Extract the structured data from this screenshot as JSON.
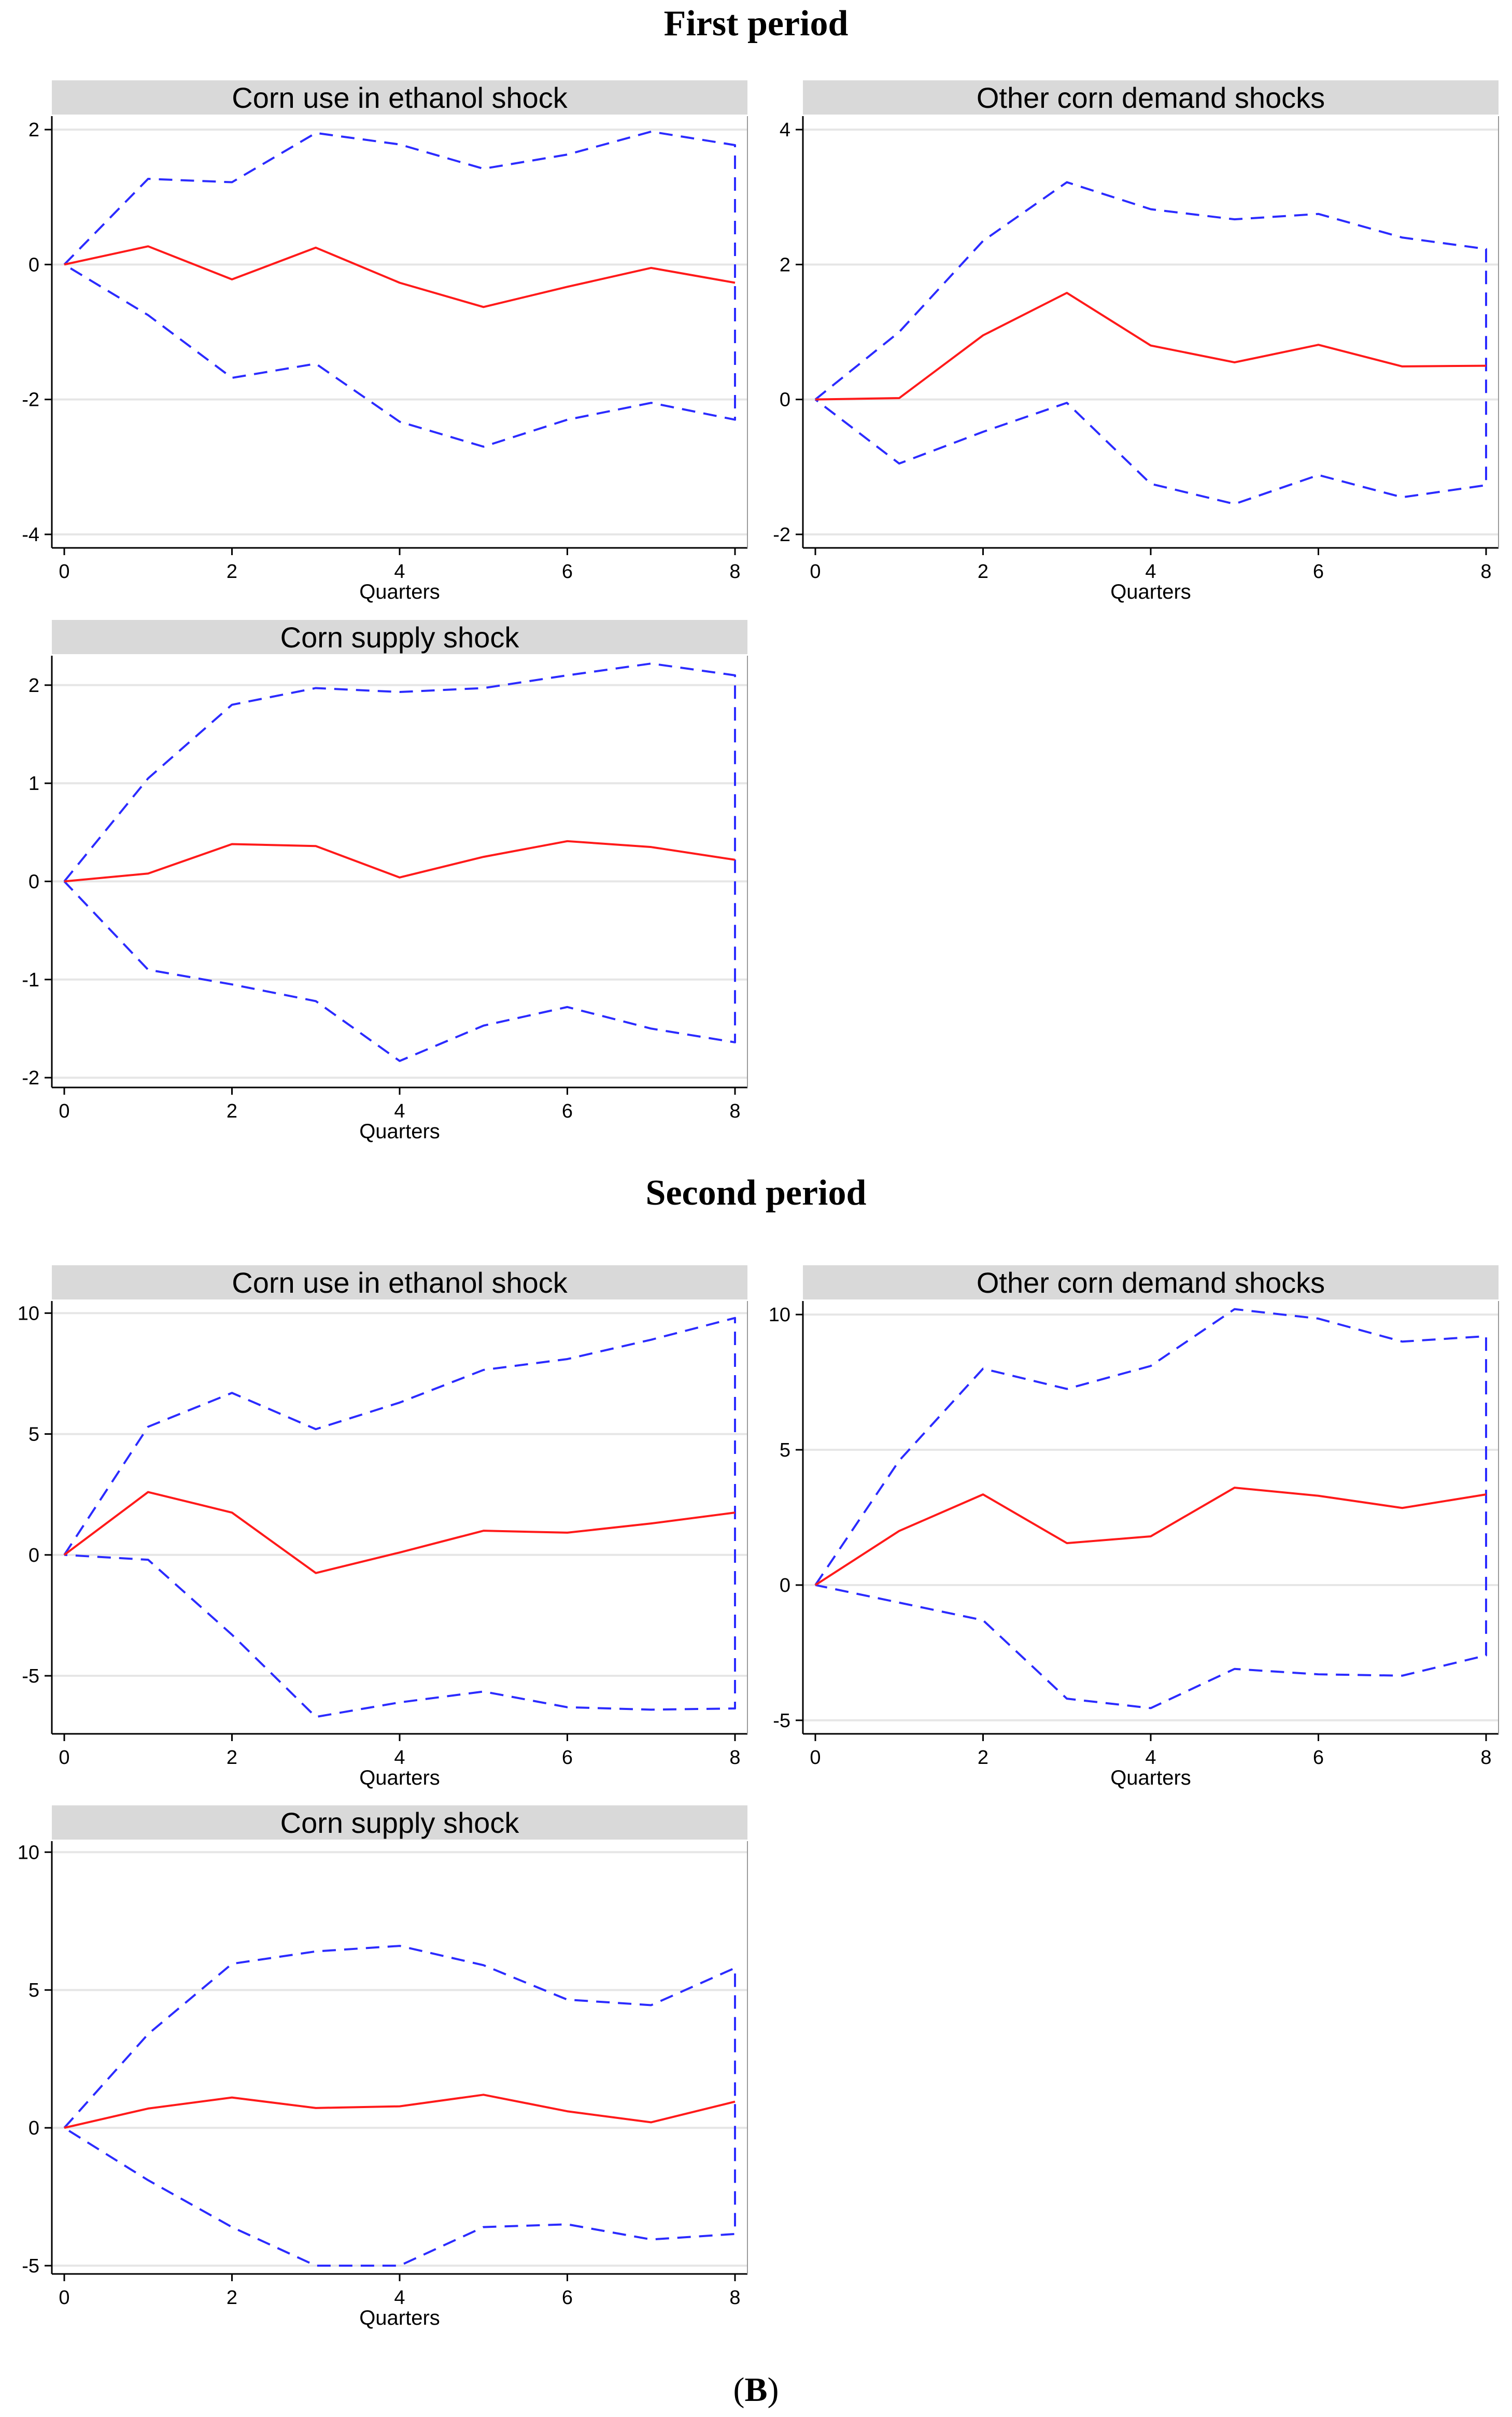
{
  "periods": [
    {
      "title": "First period"
    },
    {
      "title": "Second period"
    }
  ],
  "figure_label": "B",
  "figure_label_open": "(",
  "figure_label_close": ")",
  "colors": {
    "irf": "#ff1a1a",
    "bands": "#2b2bff",
    "title_bar": "#d9d9d9",
    "grid": "#e6e6e6",
    "axis": "#000000"
  },
  "chart_data": [
    {
      "period": "First period",
      "type": "line",
      "title": "Corn use in ethanol shock",
      "xlabel": "Quarters",
      "x": [
        0,
        1,
        2,
        3,
        4,
        5,
        6,
        7,
        8
      ],
      "xticks": [
        0,
        2,
        4,
        6,
        8
      ],
      "yticks": [
        -4,
        -2,
        0,
        2
      ],
      "ylim": [
        -4.2,
        2.2
      ],
      "grid": true,
      "series": [
        {
          "name": "irf",
          "style": "solid",
          "values": [
            0,
            0.27,
            -0.22,
            0.25,
            -0.27,
            -0.63,
            -0.33,
            -0.05,
            -0.27
          ]
        },
        {
          "name": "upper",
          "style": "dashed",
          "values": [
            0,
            1.27,
            1.22,
            1.95,
            1.78,
            1.42,
            1.63,
            1.97,
            1.77
          ]
        },
        {
          "name": "lower",
          "style": "dashed",
          "values": [
            0,
            -0.75,
            -1.68,
            -1.47,
            -2.33,
            -2.7,
            -2.3,
            -2.05,
            -2.3
          ]
        }
      ]
    },
    {
      "period": "First period",
      "type": "line",
      "title": "Other corn demand shocks",
      "xlabel": "Quarters",
      "x": [
        0,
        1,
        2,
        3,
        4,
        5,
        6,
        7,
        8
      ],
      "xticks": [
        0,
        2,
        4,
        6,
        8
      ],
      "yticks": [
        -2,
        0,
        2,
        4
      ],
      "ylim": [
        -2.2,
        4.2
      ],
      "grid": true,
      "series": [
        {
          "name": "irf",
          "style": "solid",
          "values": [
            0,
            0.02,
            0.95,
            1.58,
            0.8,
            0.55,
            0.81,
            0.49,
            0.5
          ]
        },
        {
          "name": "upper",
          "style": "dashed",
          "values": [
            0,
            1.0,
            2.35,
            3.22,
            2.82,
            2.67,
            2.75,
            2.4,
            2.23
          ]
        },
        {
          "name": "lower",
          "style": "dashed",
          "values": [
            0,
            -0.95,
            -0.48,
            -0.05,
            -1.25,
            -1.55,
            -1.12,
            -1.45,
            -1.27
          ]
        }
      ]
    },
    {
      "period": "First period",
      "type": "line",
      "title": "Corn supply shock",
      "xlabel": "Quarters",
      "x": [
        0,
        1,
        2,
        3,
        4,
        5,
        6,
        7,
        8
      ],
      "xticks": [
        0,
        2,
        4,
        6,
        8
      ],
      "yticks": [
        -2,
        -1,
        0,
        1,
        2
      ],
      "ylim": [
        -2.1,
        2.3
      ],
      "grid": true,
      "series": [
        {
          "name": "irf",
          "style": "solid",
          "values": [
            0,
            0.08,
            0.38,
            0.36,
            0.04,
            0.25,
            0.41,
            0.35,
            0.22
          ]
        },
        {
          "name": "upper",
          "style": "dashed",
          "values": [
            0,
            1.05,
            1.8,
            1.97,
            1.93,
            1.97,
            2.1,
            2.22,
            2.1
          ]
        },
        {
          "name": "lower",
          "style": "dashed",
          "values": [
            0,
            -0.9,
            -1.05,
            -1.22,
            -1.83,
            -1.47,
            -1.28,
            -1.5,
            -1.64
          ]
        }
      ]
    },
    {
      "period": "Second period",
      "type": "line",
      "title": "Corn use in ethanol shock",
      "xlabel": "Quarters",
      "x": [
        0,
        1,
        2,
        3,
        4,
        5,
        6,
        7,
        8
      ],
      "xticks": [
        0,
        2,
        4,
        6,
        8
      ],
      "yticks": [
        -5,
        0,
        5,
        10
      ],
      "ylim": [
        -7.4,
        10.5
      ],
      "grid": true,
      "series": [
        {
          "name": "irf",
          "style": "solid",
          "values": [
            0,
            2.6,
            1.75,
            -0.75,
            0.1,
            1.0,
            0.92,
            1.3,
            1.75
          ]
        },
        {
          "name": "upper",
          "style": "dashed",
          "values": [
            0,
            5.3,
            6.7,
            5.2,
            6.3,
            7.65,
            8.1,
            8.9,
            9.8
          ]
        },
        {
          "name": "lower",
          "style": "dashed",
          "values": [
            0,
            -0.2,
            -3.3,
            -6.7,
            -6.1,
            -5.65,
            -6.3,
            -6.4,
            -6.35
          ]
        }
      ]
    },
    {
      "period": "Second period",
      "type": "line",
      "title": "Other corn demand shocks",
      "xlabel": "Quarters",
      "x": [
        0,
        1,
        2,
        3,
        4,
        5,
        6,
        7,
        8
      ],
      "xticks": [
        0,
        2,
        4,
        6,
        8
      ],
      "yticks": [
        -5,
        0,
        5,
        10
      ],
      "ylim": [
        -5.5,
        10.5
      ],
      "grid": true,
      "series": [
        {
          "name": "irf",
          "style": "solid",
          "values": [
            0,
            2.0,
            3.35,
            1.55,
            1.8,
            3.6,
            3.3,
            2.85,
            3.35
          ]
        },
        {
          "name": "upper",
          "style": "dashed",
          "values": [
            0,
            4.6,
            8.0,
            7.25,
            8.1,
            10.2,
            9.85,
            9.0,
            9.2
          ]
        },
        {
          "name": "lower",
          "style": "dashed",
          "values": [
            0,
            -0.65,
            -1.3,
            -4.2,
            -4.55,
            -3.1,
            -3.3,
            -3.35,
            -2.6
          ]
        }
      ]
    },
    {
      "period": "Second period",
      "type": "line",
      "title": "Corn supply shock",
      "xlabel": "Quarters",
      "x": [
        0,
        1,
        2,
        3,
        4,
        5,
        6,
        7,
        8
      ],
      "xticks": [
        0,
        2,
        4,
        6,
        8
      ],
      "yticks": [
        -5,
        0,
        5,
        10
      ],
      "ylim": [
        -5.3,
        10.4
      ],
      "grid": true,
      "series": [
        {
          "name": "irf",
          "style": "solid",
          "values": [
            0,
            0.7,
            1.1,
            0.72,
            0.78,
            1.2,
            0.6,
            0.2,
            0.95
          ]
        },
        {
          "name": "upper",
          "style": "dashed",
          "values": [
            0,
            3.4,
            5.95,
            6.4,
            6.6,
            5.9,
            4.65,
            4.45,
            5.8
          ]
        },
        {
          "name": "lower",
          "style": "dashed",
          "values": [
            0,
            -1.9,
            -3.6,
            -5.0,
            -5.0,
            -3.6,
            -3.5,
            -4.05,
            -3.85
          ]
        }
      ]
    }
  ]
}
